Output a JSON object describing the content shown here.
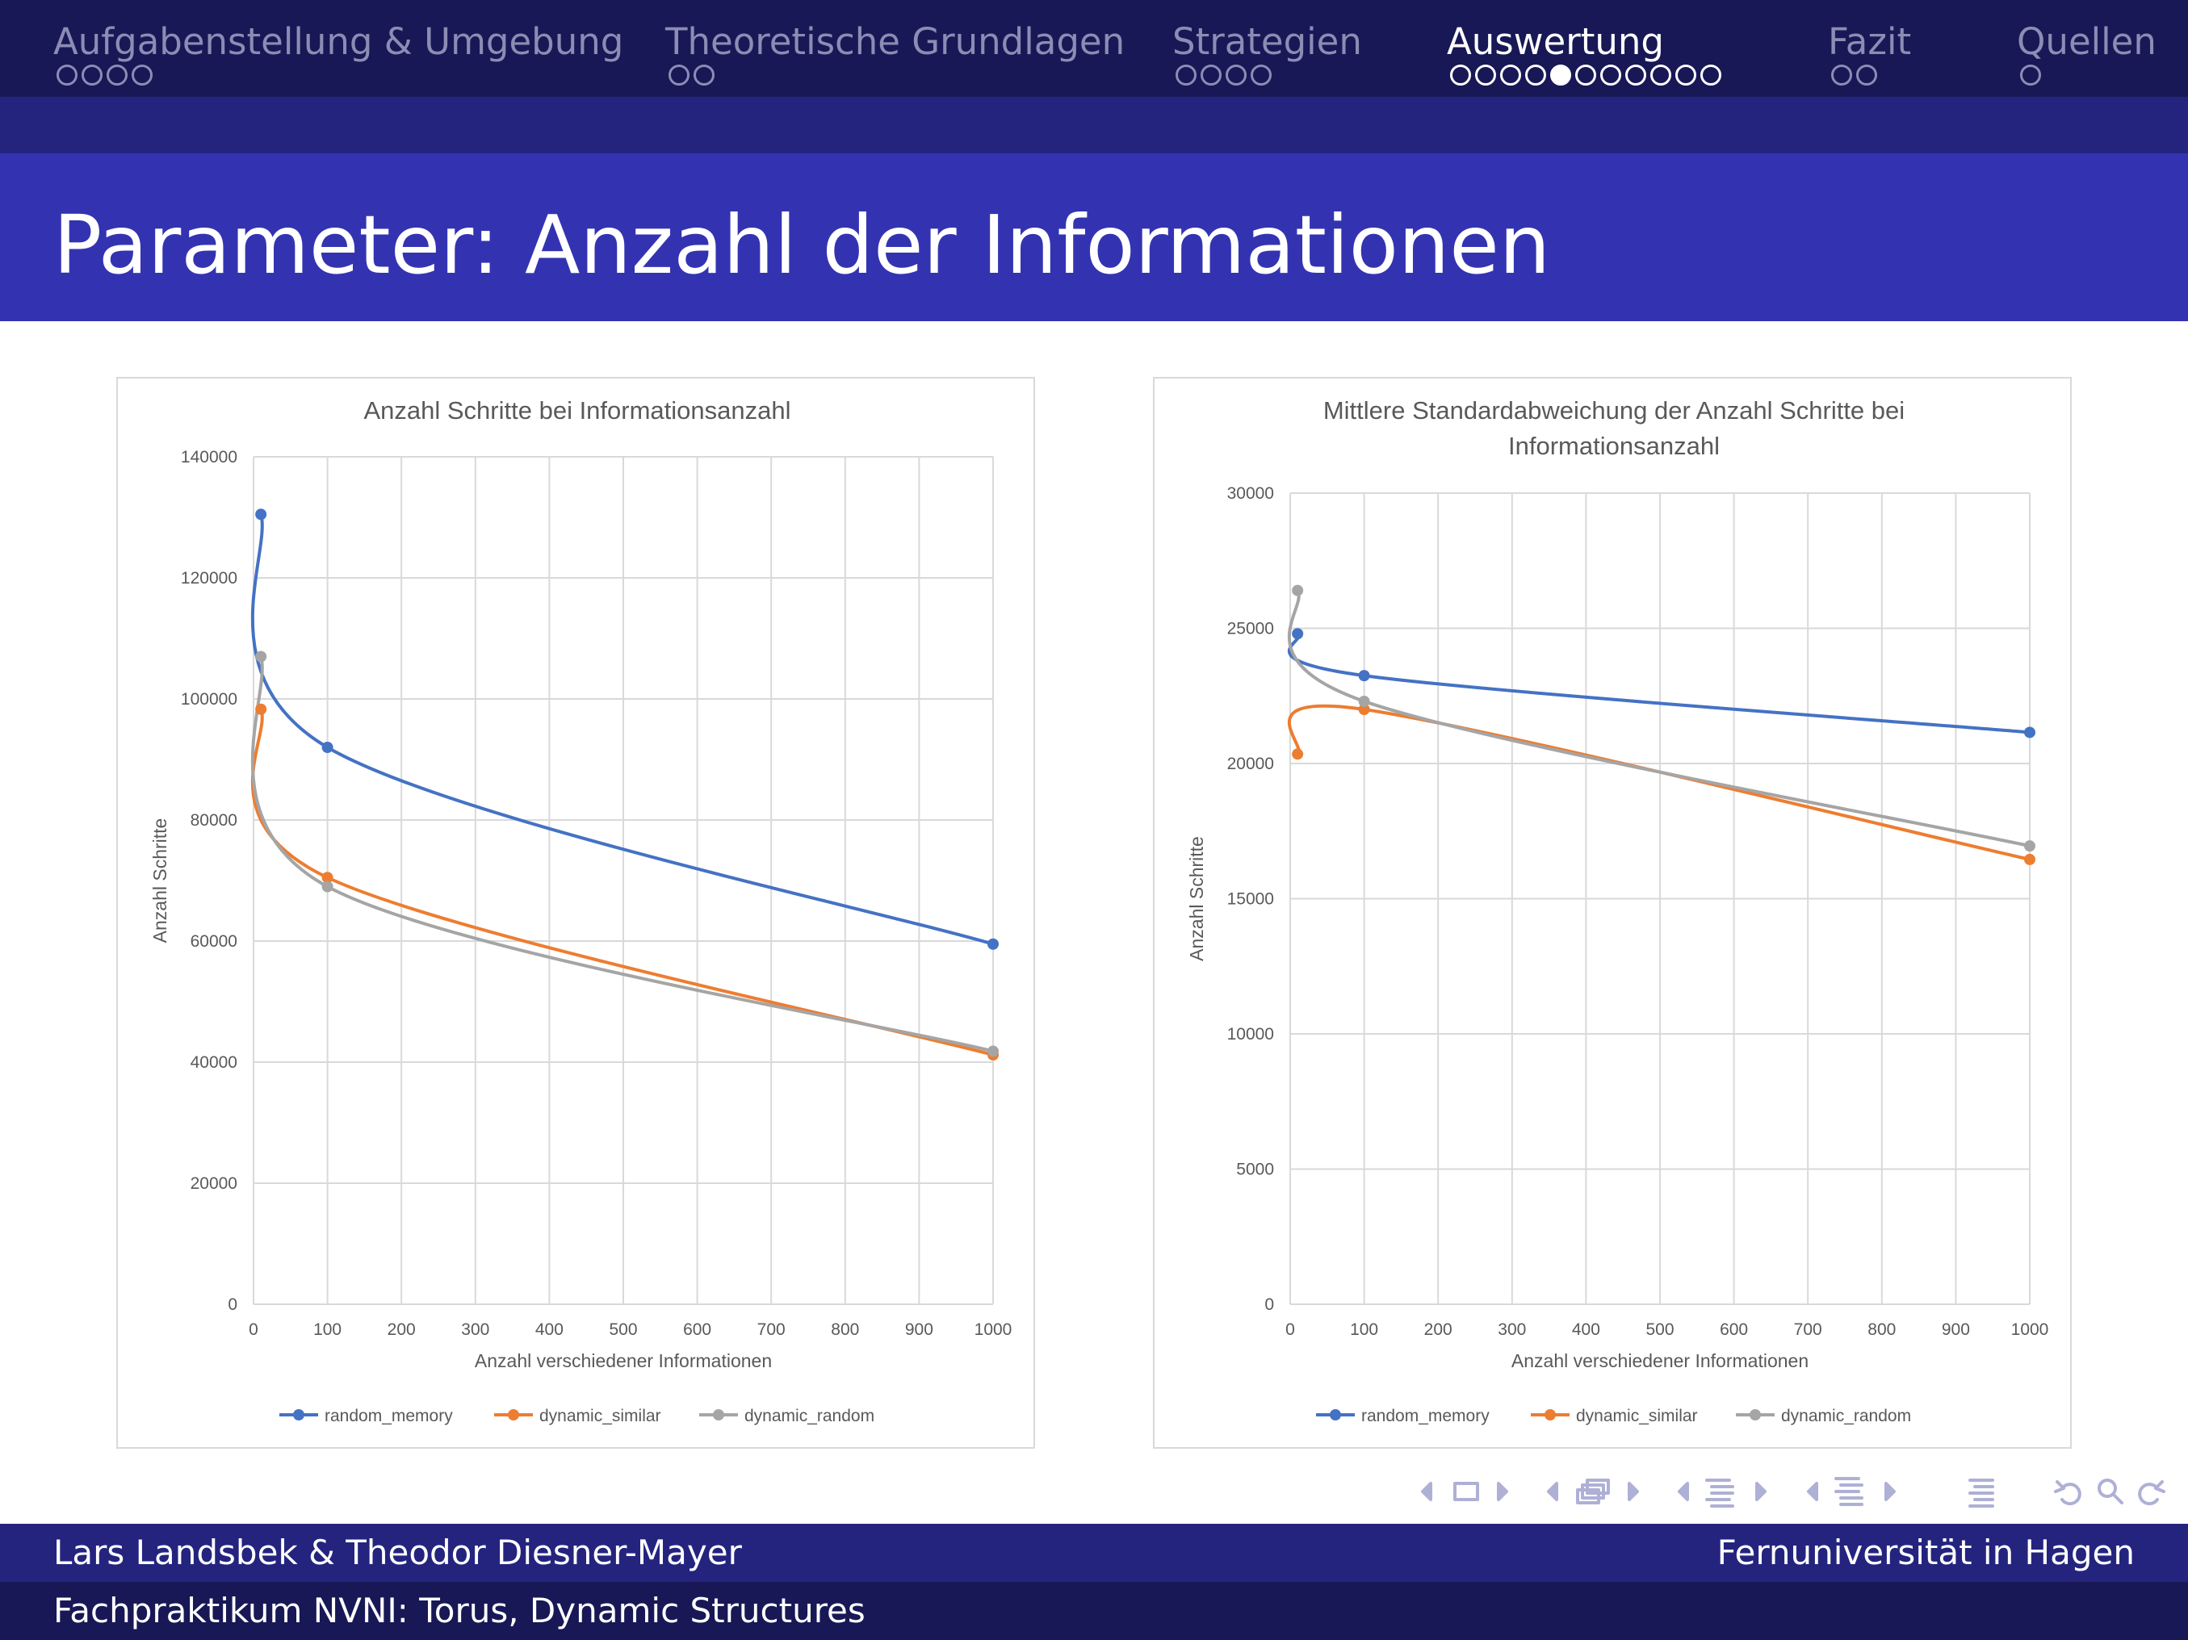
{
  "nav": {
    "sections": [
      {
        "label": "Aufgabenstellung & Umgebung",
        "dots": 4,
        "filled": -1,
        "active": false
      },
      {
        "label": "Theoretische Grundlagen",
        "dots": 2,
        "filled": -1,
        "active": false
      },
      {
        "label": "Strategien",
        "dots": 4,
        "filled": -1,
        "active": false
      },
      {
        "label": "Auswertung",
        "dots": 11,
        "filled": 4,
        "active": true
      },
      {
        "label": "Fazit",
        "dots": 2,
        "filled": -1,
        "active": false
      },
      {
        "label": "Quellen",
        "dots": 1,
        "filled": -1,
        "active": false
      }
    ]
  },
  "slide": {
    "title": "Parameter: Anzahl der Informationen"
  },
  "footer": {
    "authors": "Lars Landsbek & Theodor Diesner-Mayer",
    "institution": "Fernuniversität in Hagen",
    "course": "Fachpraktikum NVNI: Torus, Dynamic Structures"
  },
  "colors": {
    "nav_bg": "#181856",
    "band_bg": "#24247f",
    "title_bg": "#3333b2",
    "series": [
      "#4472c4",
      "#ed7d31",
      "#a5a5a5"
    ]
  },
  "icons": [
    "nav-prev-arrow-icon",
    "slide-icon",
    "nav-next-arrow-icon",
    "frame-icon",
    "subsection-icon",
    "section-icon",
    "outline-icon",
    "back-icon",
    "search-icon",
    "forward-icon"
  ],
  "chart_data": [
    {
      "type": "line",
      "title": [
        "Anzahl Schritte bei Informationsanzahl"
      ],
      "xlabel": "Anzahl verschiedener Informationen",
      "ylabel": "Anzahl Schritte",
      "xlim": [
        0,
        1000
      ],
      "ylim": [
        0,
        140000
      ],
      "xticks": [
        0,
        100,
        200,
        300,
        400,
        500,
        600,
        700,
        800,
        900,
        1000
      ],
      "yticks": [
        0,
        20000,
        40000,
        60000,
        80000,
        100000,
        120000,
        140000
      ],
      "grid": true,
      "smooth": true,
      "legend": "bottom",
      "x": [
        10,
        100,
        1000
      ],
      "series": [
        {
          "name": "random_memory",
          "color": "#4472c4",
          "values": [
            130500,
            92000,
            59500
          ]
        },
        {
          "name": "dynamic_similar",
          "color": "#ed7d31",
          "values": [
            98300,
            70500,
            41200
          ]
        },
        {
          "name": "dynamic_random",
          "color": "#a5a5a5",
          "values": [
            107000,
            69000,
            41800
          ]
        }
      ]
    },
    {
      "type": "line",
      "title": [
        "Mittlere Standardabweichung der Anzahl Schritte bei",
        "Informationsanzahl"
      ],
      "xlabel": "Anzahl verschiedener Informationen",
      "ylabel": "Anzahl Schritte",
      "xlim": [
        0,
        1000
      ],
      "ylim": [
        0,
        30000
      ],
      "xticks": [
        0,
        100,
        200,
        300,
        400,
        500,
        600,
        700,
        800,
        900,
        1000
      ],
      "yticks": [
        0,
        5000,
        10000,
        15000,
        20000,
        25000,
        30000
      ],
      "grid": true,
      "smooth": true,
      "legend": "bottom",
      "x": [
        10,
        100,
        1000
      ],
      "series": [
        {
          "name": "random_memory",
          "color": "#4472c4",
          "values": [
            24800,
            23250,
            21150
          ]
        },
        {
          "name": "dynamic_similar",
          "color": "#ed7d31",
          "values": [
            20350,
            22000,
            16450
          ]
        },
        {
          "name": "dynamic_random",
          "color": "#a5a5a5",
          "values": [
            26400,
            22300,
            16950
          ]
        }
      ]
    }
  ]
}
